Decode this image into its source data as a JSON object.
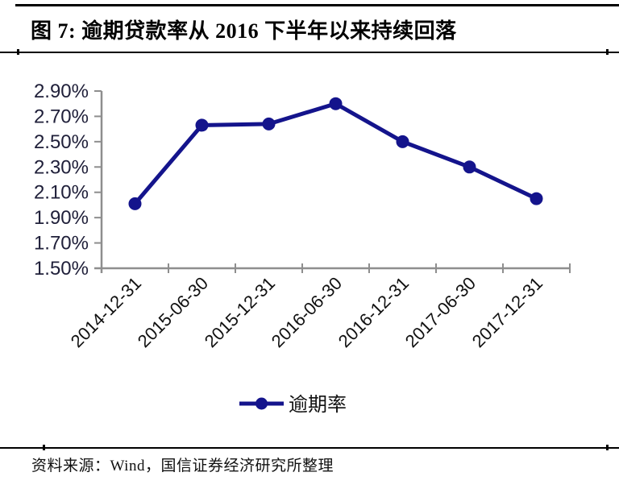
{
  "figure": {
    "title": "图 7: 逾期贷款率从 2016 下半年以来持续回落",
    "source": "资料来源：Wind，国信证券经济研究所整理"
  },
  "chart_data": {
    "type": "line",
    "title": "",
    "categories": [
      "2014-12-31",
      "2015-06-30",
      "2015-12-31",
      "2016-06-30",
      "2016-12-31",
      "2017-06-30",
      "2017-12-31"
    ],
    "series": [
      {
        "name": "逾期率",
        "values": [
          2.01,
          2.63,
          2.64,
          2.8,
          2.5,
          2.3,
          2.05
        ]
      }
    ],
    "xlabel": "",
    "ylabel": "",
    "ylim": [
      1.5,
      2.9
    ],
    "ytick_step": 0.2,
    "ytick_labels": [
      "1.50%",
      "1.70%",
      "1.90%",
      "2.10%",
      "2.30%",
      "2.50%",
      "2.70%",
      "2.90%"
    ],
    "grid": false,
    "legend_position": "bottom",
    "colors": {
      "line": "#14148C",
      "marker": "#14148C",
      "axis": "#8e8e8e",
      "ytick_text": "#20203a",
      "xtick_text": "#111111"
    }
  }
}
